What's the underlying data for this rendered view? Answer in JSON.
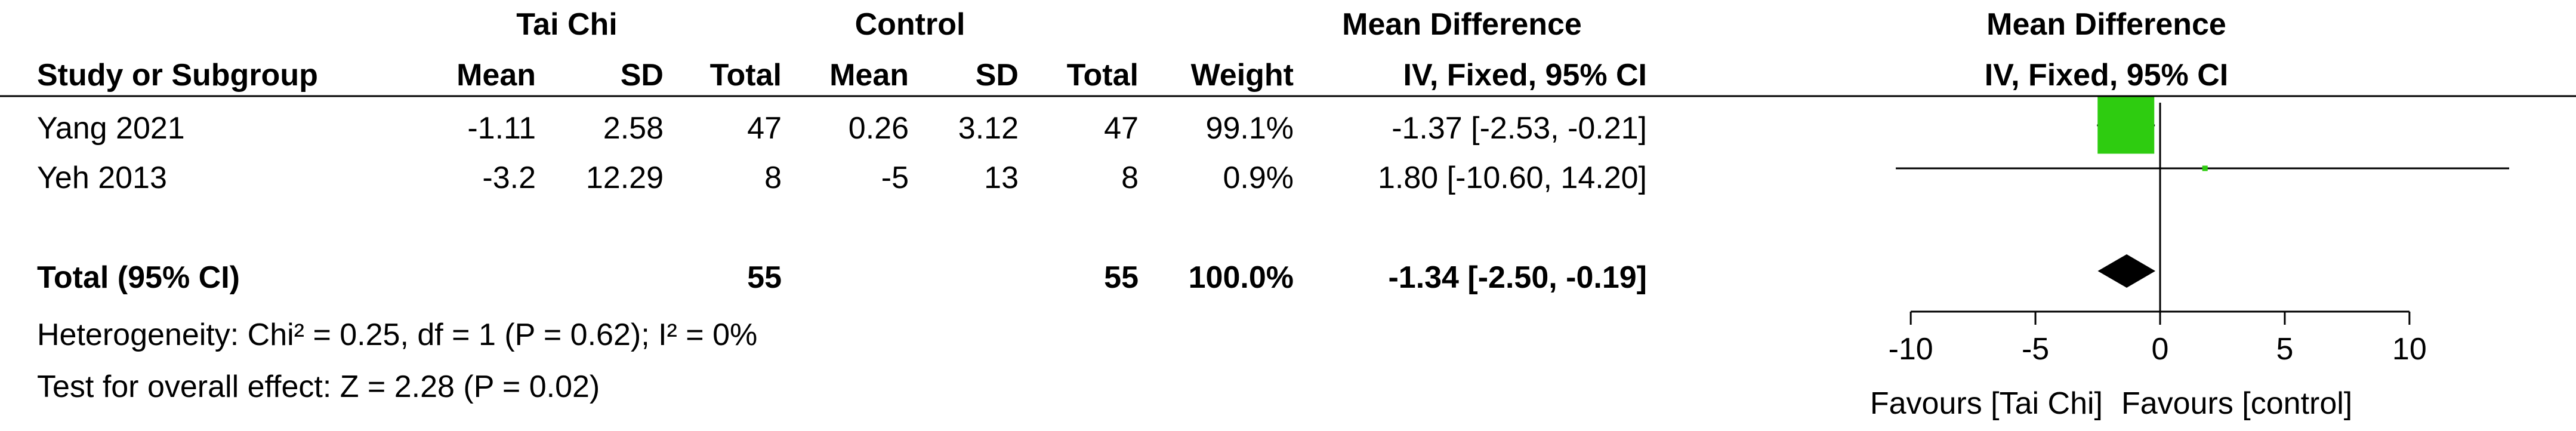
{
  "table": {
    "group_header_experimental": "Tai Chi",
    "group_header_control": "Control",
    "group_header_effect": "Mean Difference",
    "group_header_plot": "Mean Difference",
    "col_study": "Study or Subgroup",
    "col_mean": "Mean",
    "col_sd": "SD",
    "col_total": "Total",
    "col_mean_c": "Mean",
    "col_sd_c": "SD",
    "col_total_c": "Total",
    "col_weight": "Weight",
    "col_effect": "IV, Fixed, 95% CI",
    "col_plot_method": "IV, Fixed, 95% CI",
    "total_label": "Total (95% CI)",
    "total_exp": "55",
    "total_ctrl": "55",
    "total_weight": "100.0%",
    "total_effect": "-1.34 [-2.50, -0.19]",
    "heterogeneity": "Heterogeneity: Chi² = 0.25, df = 1 (P = 0.62); I² = 0%",
    "overall_effect": "Test for overall effect: Z = 2.28 (P = 0.02)",
    "favours_left": "Favours [Tai Chi]",
    "favours_right": "Favours [control]"
  },
  "chart_data": {
    "type": "forest",
    "xlim": [
      -14,
      14
    ],
    "ticks": [
      -10,
      -5,
      0,
      5,
      10
    ],
    "tick_labels": [
      "-10",
      "-5",
      "0",
      "5",
      "10"
    ],
    "colors": {
      "study_marker": "#2ecc10",
      "pooled_marker": "#000000",
      "line": "#000000"
    },
    "studies": [
      {
        "name": "Yang 2021",
        "mean_e": "-1.11",
        "sd_e": "2.58",
        "total_e": "47",
        "mean_c": "0.26",
        "sd_c": "3.12",
        "total_c": "47",
        "weight_label": "99.1%",
        "ci_label": "-1.37 [-2.53, -0.21]",
        "md": -1.37,
        "lo": -2.53,
        "hi": -0.21,
        "weight": 99.1
      },
      {
        "name": "Yeh 2013",
        "mean_e": "-3.2",
        "sd_e": "12.29",
        "total_e": "8",
        "mean_c": "-5",
        "sd_c": "13",
        "total_c": "8",
        "weight_label": "0.9%",
        "ci_label": "1.80 [-10.60, 14.20]",
        "md": 1.8,
        "lo": -10.6,
        "hi": 14.2,
        "weight": 0.9
      }
    ],
    "pooled": {
      "md": -1.34,
      "lo": -2.5,
      "hi": -0.19
    }
  }
}
